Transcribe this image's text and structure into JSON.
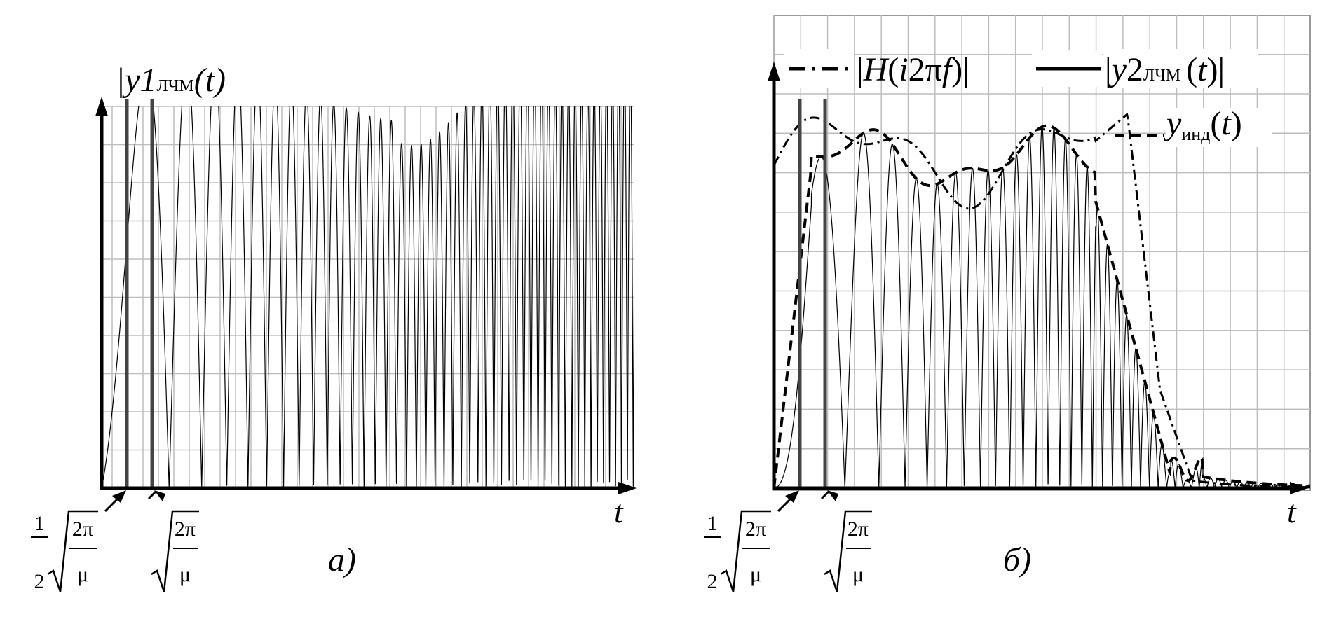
{
  "chart_data": [
    {
      "type": "line",
      "panel_label": "а)",
      "xlabel": "t",
      "ylabel": "|y1",
      "ylabel_sub": "ЛЧМ",
      "ylabel_tail": "(t)",
      "grid": true,
      "ylim": [
        0,
        1
      ],
      "series": [
        {
          "name": "",
          "style": "solid",
          "description_values": {
            "t_start": 0,
            "t_end": 1,
            "amplitude": 1
          }
        }
      ],
      "markers": [
        {
          "label_frac_num": "1",
          "label_frac_den": "2",
          "label_root_num": "2π",
          "label_root_den": "μ",
          "t": 0.05
        },
        {
          "label_root_num": "2π",
          "label_root_den": "μ",
          "t": 0.1
        }
      ]
    },
    {
      "type": "line",
      "panel_label": "б)",
      "xlabel": "t",
      "grid": true,
      "ylim": [
        0,
        1
      ],
      "series": [
        {
          "name": "|H(i2πf)|",
          "style": "dash-dot",
          "name_parts": {
            "a": "|",
            "b": "H",
            "c": "(",
            "d": "i",
            "e": "2π",
            "f": "f",
            "g": ")|"
          }
        },
        {
          "name": "|y2ЛЧМ(t)|",
          "style": "solid",
          "name_parts": {
            "a": "|",
            "b": "y",
            "c": "2",
            "sub": "ЛЧМ",
            "d": "(",
            "e": "t",
            "f": ")|"
          }
        },
        {
          "name": "yинд(t)",
          "style": "dashed",
          "name_parts": {
            "b": "y",
            "sub": "инд",
            "d": "(",
            "e": "t",
            "f": ")"
          }
        }
      ],
      "markers": [
        {
          "label_frac_num": "1",
          "label_frac_den": "2",
          "label_root_num": "2π",
          "label_root_den": "μ",
          "t": 0.05
        },
        {
          "label_root_num": "2π",
          "label_root_den": "μ",
          "t": 0.1
        }
      ]
    }
  ]
}
